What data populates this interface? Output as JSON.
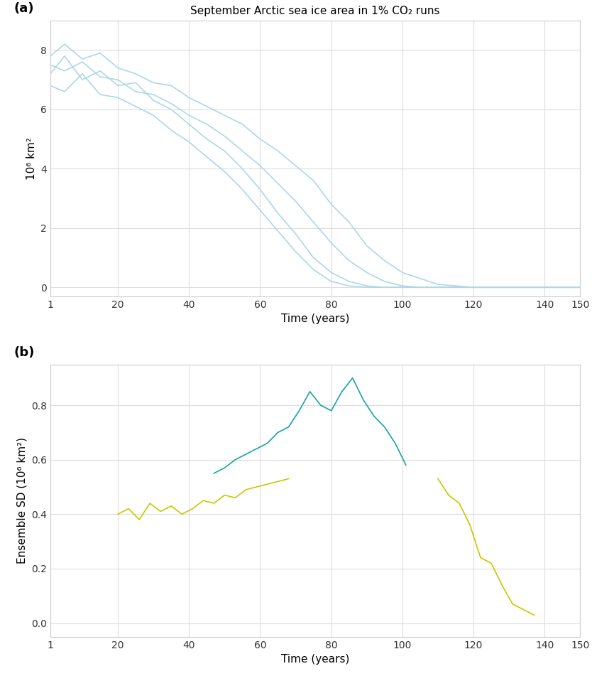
{
  "chart_data": [
    {
      "type": "line",
      "panel_label": "(a)",
      "title": "September Arctic sea ice area in 1% CO₂ runs",
      "x_label": "Time (years)",
      "y_label": "10⁶ km²",
      "x": [
        1,
        5,
        10,
        15,
        20,
        25,
        30,
        35,
        40,
        45,
        50,
        55,
        60,
        65,
        70,
        75,
        80,
        85,
        90,
        95,
        100,
        105,
        110,
        115,
        120,
        125,
        130,
        135,
        140,
        145,
        150
      ],
      "series": [
        {
          "color": "#add8e6",
          "values": [
            7.2,
            7.8,
            7.0,
            7.3,
            6.8,
            6.9,
            6.3,
            6.0,
            5.5,
            5.0,
            4.6,
            4.0,
            3.3,
            2.5,
            1.8,
            1.0,
            0.5,
            0.2,
            0.05,
            0,
            0,
            0,
            0,
            0,
            0,
            0,
            0,
            0,
            0,
            0,
            0
          ]
        },
        {
          "color": "#add8e6",
          "values": [
            7.5,
            7.3,
            7.6,
            7.1,
            7.0,
            6.6,
            6.5,
            6.2,
            5.8,
            5.5,
            5.1,
            4.6,
            4.1,
            3.5,
            2.9,
            2.2,
            1.5,
            0.9,
            0.5,
            0.2,
            0.05,
            0,
            0,
            0,
            0,
            0,
            0,
            0,
            0,
            0,
            0
          ]
        },
        {
          "color": "#add8e6",
          "values": [
            7.8,
            8.2,
            7.7,
            7.9,
            7.4,
            7.2,
            6.9,
            6.8,
            6.4,
            6.1,
            5.8,
            5.5,
            5.0,
            4.6,
            4.1,
            3.6,
            2.8,
            2.2,
            1.4,
            0.9,
            0.5,
            0.3,
            0.1,
            0.05,
            0,
            0,
            0,
            0,
            0,
            0,
            0
          ]
        },
        {
          "color": "#add8e6",
          "values": [
            6.8,
            6.6,
            7.2,
            6.5,
            6.4,
            6.1,
            5.8,
            5.3,
            4.9,
            4.4,
            3.9,
            3.3,
            2.6,
            1.9,
            1.2,
            0.6,
            0.2,
            0.05,
            0,
            0,
            0,
            0,
            0,
            0,
            0,
            0,
            0,
            0,
            0,
            0,
            0
          ]
        }
      ],
      "xlim": [
        1,
        150
      ],
      "xticks": [
        1,
        20,
        40,
        60,
        80,
        100,
        120,
        140,
        150
      ],
      "ylim": [
        -0.3,
        9
      ],
      "yticks": [
        0,
        2,
        4,
        6,
        8
      ],
      "grid": true
    },
    {
      "type": "line",
      "panel_label": "(b)",
      "x_label": "Time (years)",
      "y_label": "Ensemble SD (10⁶ km²)",
      "x": [
        20,
        23,
        26,
        29,
        32,
        35,
        38,
        41,
        44,
        47,
        50,
        53,
        56,
        59,
        62,
        65,
        68,
        71,
        74,
        77,
        80,
        83,
        86,
        89,
        92,
        95,
        98,
        101,
        104,
        107,
        110,
        113,
        116,
        119,
        122,
        125,
        128,
        131,
        134,
        137
      ],
      "series": [
        {
          "color": "#c9c900",
          "values": [
            0.4,
            0.42,
            0.38,
            0.44,
            0.41,
            0.43,
            0.4,
            0.42,
            0.45,
            0.44,
            0.47,
            0.46,
            0.49,
            0.5,
            0.51,
            0.52,
            0.53,
            null,
            null,
            null,
            null,
            null,
            null,
            null,
            null,
            null,
            null,
            null,
            null,
            null,
            0.53,
            0.47,
            0.44,
            0.36,
            0.24,
            0.22,
            0.14,
            0.07,
            0.05,
            0.03
          ]
        },
        {
          "color": "#1aa3a3",
          "values": [
            null,
            null,
            null,
            null,
            null,
            null,
            null,
            null,
            null,
            0.55,
            0.57,
            0.6,
            0.62,
            0.64,
            0.66,
            0.7,
            0.72,
            0.78,
            0.85,
            0.8,
            0.78,
            0.85,
            0.9,
            0.82,
            0.76,
            0.72,
            0.66,
            0.58,
            null,
            null,
            null,
            null,
            null,
            null,
            null,
            null,
            null,
            null,
            null,
            null
          ]
        }
      ],
      "xlim": [
        1,
        150
      ],
      "xticks": [
        1,
        20,
        40,
        60,
        80,
        100,
        120,
        140,
        150
      ],
      "ylim": [
        -0.05,
        0.95
      ],
      "yticks": [
        {
          "value": 0,
          "label": "0.0"
        },
        {
          "value": 0.2,
          "label": "0.2"
        },
        {
          "value": 0.4,
          "label": "0.4"
        },
        {
          "value": 0.6,
          "label": "0.6"
        },
        {
          "value": 0.8,
          "label": "0.8"
        }
      ],
      "grid": true
    }
  ]
}
